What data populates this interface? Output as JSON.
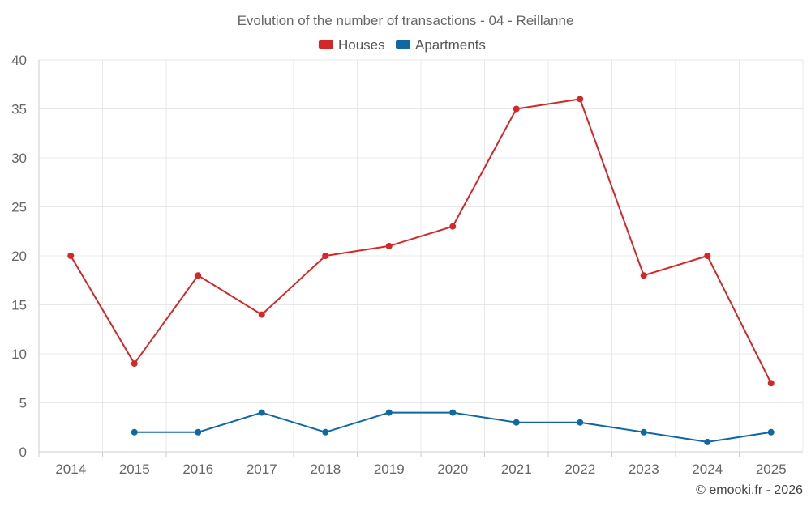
{
  "chart_data": {
    "type": "line",
    "title": "Evolution of the number of transactions - 04 - Reillanne",
    "categories": [
      "2014",
      "2015",
      "2016",
      "2017",
      "2018",
      "2019",
      "2020",
      "2021",
      "2022",
      "2023",
      "2024",
      "2025"
    ],
    "series": [
      {
        "name": "Houses",
        "color": "#d62728",
        "values": [
          20,
          9,
          18,
          14,
          20,
          21,
          23,
          35,
          36,
          18,
          20,
          7
        ]
      },
      {
        "name": "Apartments",
        "color": "#1068a0",
        "values": [
          null,
          2,
          2,
          4,
          2,
          4,
          4,
          3,
          3,
          2,
          1,
          2
        ]
      }
    ],
    "ylim": [
      0,
      40
    ],
    "yticks": [
      "0",
      "5",
      "10",
      "15",
      "20",
      "25",
      "30",
      "35",
      "40"
    ],
    "grid": true,
    "legend": "top-center",
    "xlabel": "",
    "ylabel": ""
  },
  "credit": "© emooki.fr - 2026"
}
